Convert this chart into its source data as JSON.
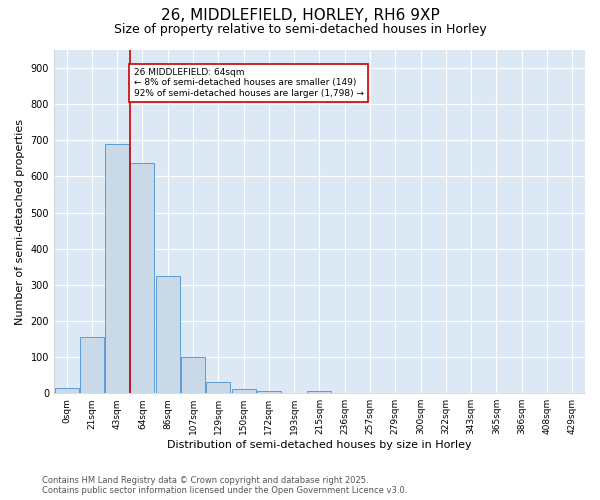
{
  "title": "26, MIDDLEFIELD, HORLEY, RH6 9XP",
  "subtitle": "Size of property relative to semi-detached houses in Horley",
  "xlabel": "Distribution of semi-detached houses by size in Horley",
  "ylabel": "Number of semi-detached properties",
  "bar_color": "#c9d9e8",
  "bar_edge_color": "#5b9bd5",
  "background_color": "#dce9f5",
  "grid_color": "#ffffff",
  "annotation_box_color": "#cc0000",
  "annotation_text": "26 MIDDLEFIELD: 64sqm\n← 8% of semi-detached houses are smaller (149)\n92% of semi-detached houses are larger (1,798) →",
  "vline_x": 2,
  "vline_color": "#cc0000",
  "categories": [
    "0sqm",
    "21sqm",
    "43sqm",
    "64sqm",
    "86sqm",
    "107sqm",
    "129sqm",
    "150sqm",
    "172sqm",
    "193sqm",
    "215sqm",
    "236sqm",
    "257sqm",
    "279sqm",
    "300sqm",
    "322sqm",
    "343sqm",
    "365sqm",
    "386sqm",
    "408sqm",
    "429sqm"
  ],
  "values": [
    14,
    155,
    690,
    638,
    325,
    100,
    30,
    12,
    5,
    0,
    6,
    0,
    0,
    0,
    0,
    0,
    0,
    0,
    0,
    0,
    0
  ],
  "ylim": [
    0,
    950
  ],
  "yticks": [
    0,
    100,
    200,
    300,
    400,
    500,
    600,
    700,
    800,
    900
  ],
  "property_bin_index": 3,
  "footnote": "Contains HM Land Registry data © Crown copyright and database right 2025.\nContains public sector information licensed under the Open Government Licence v3.0.",
  "title_fontsize": 11,
  "subtitle_fontsize": 9,
  "axis_label_fontsize": 8,
  "tick_fontsize": 7,
  "footnote_fontsize": 6
}
